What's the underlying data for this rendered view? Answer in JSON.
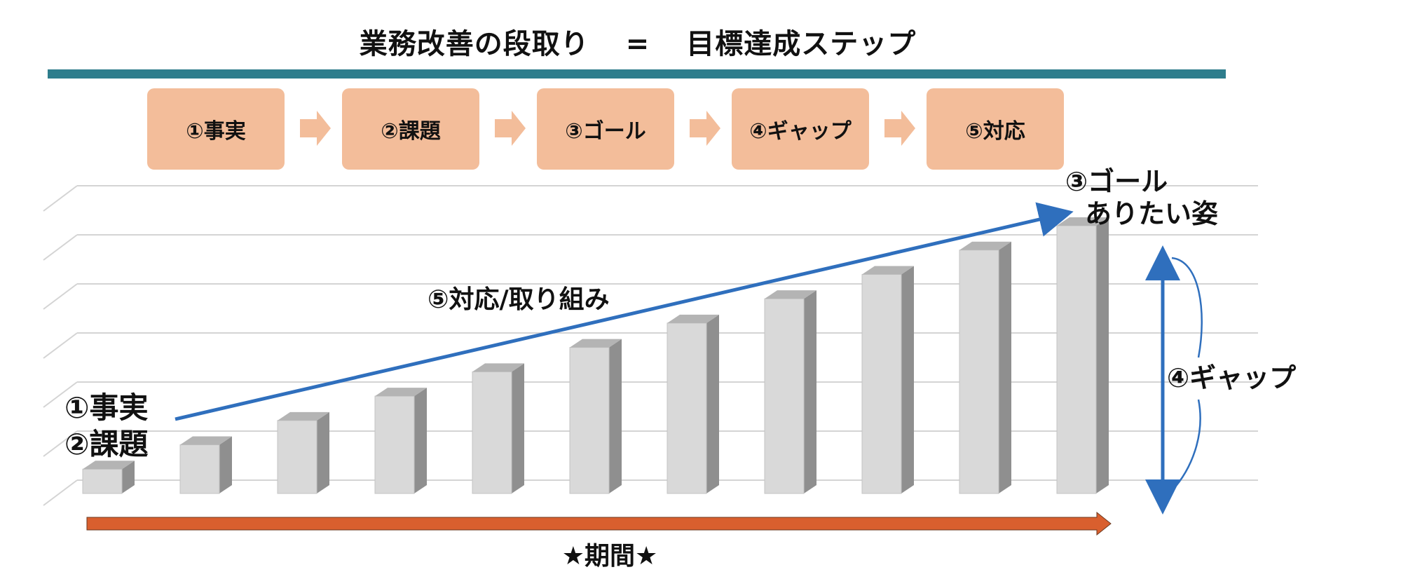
{
  "title": {
    "left": "業務改善の段取り",
    "equals": "=",
    "right": "目標達成ステップ"
  },
  "steps": [
    {
      "label": "①事実"
    },
    {
      "label": "②課題"
    },
    {
      "label": "③ゴール"
    },
    {
      "label": "④ギャップ"
    },
    {
      "label": "⑤対応"
    }
  ],
  "chart": {
    "bar_levels": [
      1,
      2,
      3,
      4,
      5,
      6,
      7,
      8,
      9,
      10,
      11
    ],
    "fact_label": "①事実",
    "issue_label": "②課題",
    "goal_label": "③ゴール",
    "goal_sub_label": "ありたい姿",
    "action_label": "⑤対応/取り組み",
    "gap_label": "④ギャップ",
    "period_label": "★期間★"
  },
  "colors": {
    "rule": "#2e7d8c",
    "step_box": "#f3bd9a",
    "step_arrow": "#f3bd9a",
    "trend_arrow": "#2f6fbd",
    "period_arrow": "#d95f2e",
    "bar_front": "#d9d9d9",
    "bar_side": "#8f8f8f",
    "bar_top": "#b4b4b4",
    "grid": "#d4d4d4"
  }
}
